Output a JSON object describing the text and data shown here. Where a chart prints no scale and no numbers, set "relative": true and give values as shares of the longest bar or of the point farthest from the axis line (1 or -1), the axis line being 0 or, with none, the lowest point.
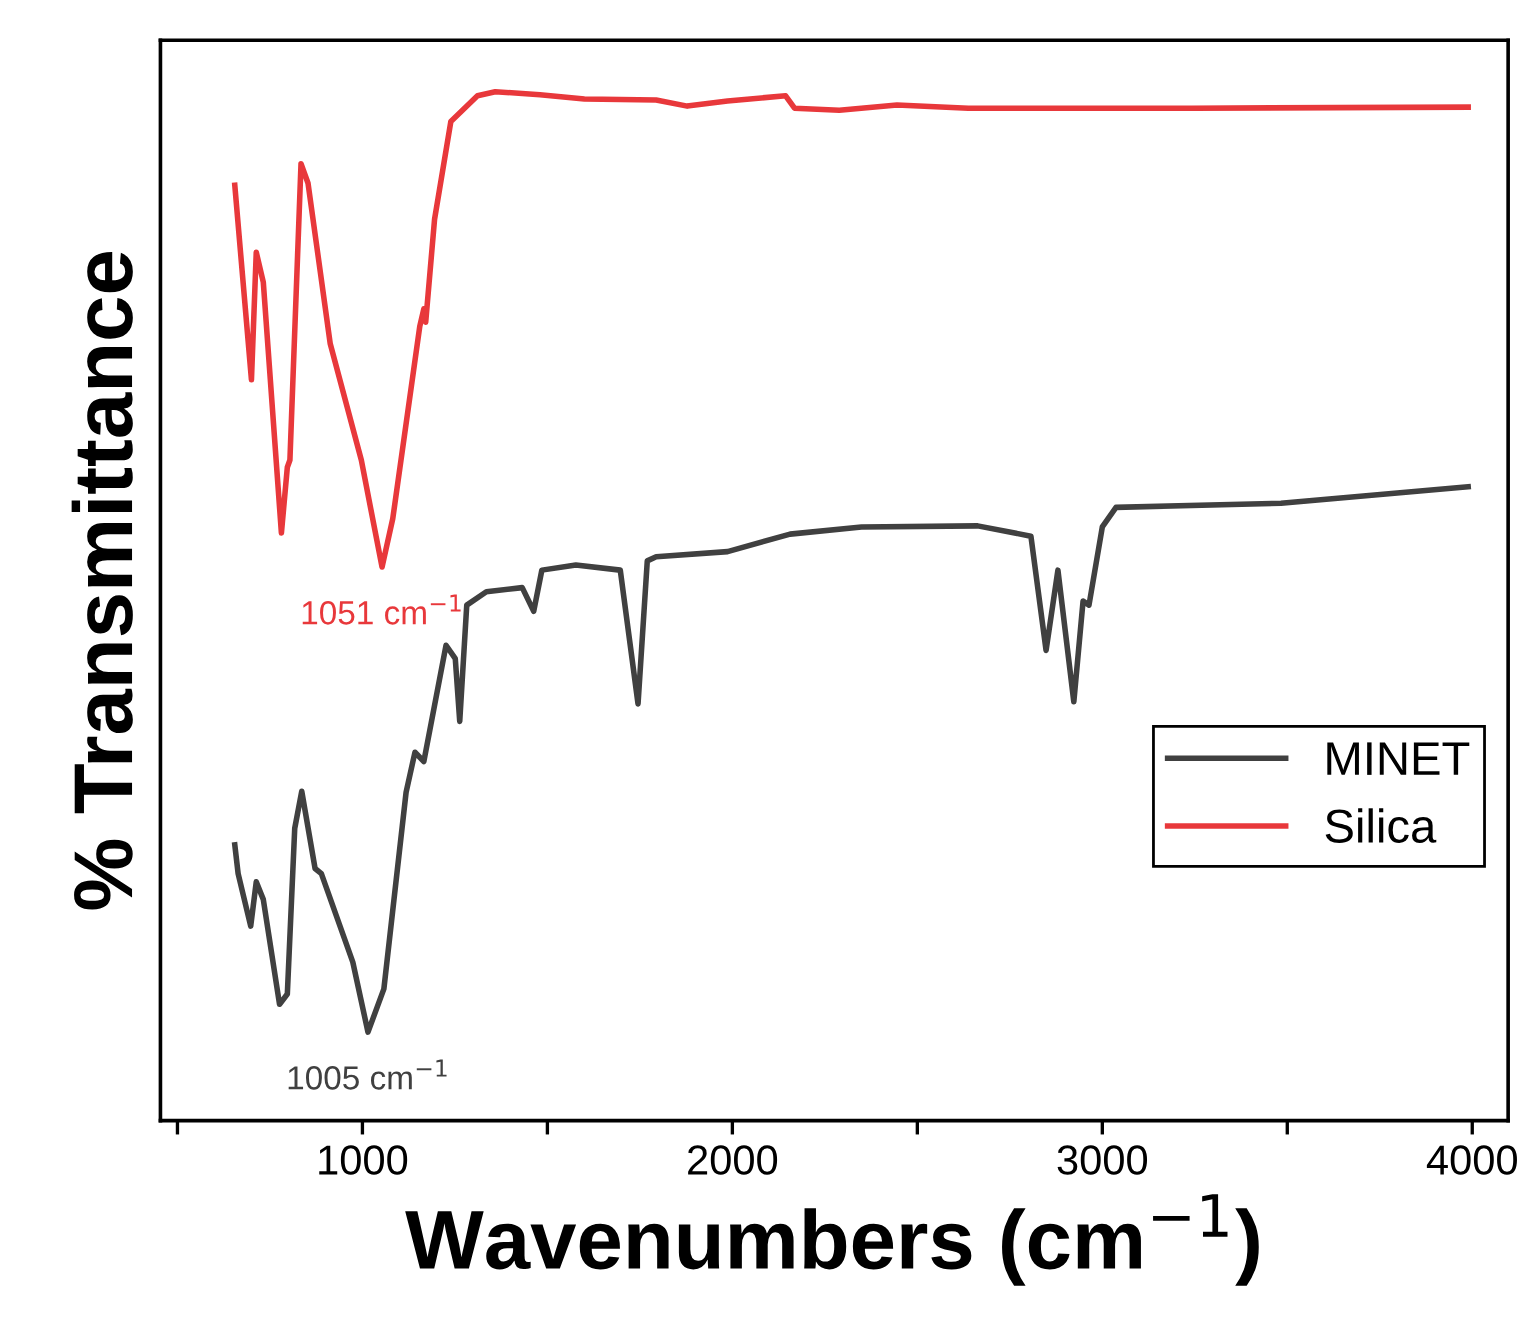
{
  "chart_data": {
    "type": "line",
    "relative": true,
    "xlabel": "Wavenumbers (cm$^{−1}$)",
    "ylabel": "% Transmittance",
    "xlim": [
      454,
      4097
    ],
    "xticks": [
      {
        "value": 500,
        "label": null
      },
      1000,
      {
        "value": 1500,
        "label": null
      },
      2000,
      {
        "value": 2500,
        "label": null
      },
      3000,
      {
        "value": 3500,
        "label": null
      },
      4000
    ],
    "legend": "right",
    "grid": false,
    "marker": "none",
    "line_style": "solid",
    "tick_labels": "x",
    "annotations": [
      {
        "text": "1051 cm$^{−1}$",
        "x": 1053,
        "y": 0.538
      },
      {
        "text": "1005 cm$^{−1}$",
        "x": 1015,
        "y": 0.086
      }
    ],
    "series": [
      {
        "name": "MINET",
        "color": "#404040",
        "x": [
          655,
          664,
          698,
          713,
          732,
          776,
          797,
          817,
          836,
          872,
          889,
          974,
          1015,
          1058,
          1118,
          1142,
          1166,
          1226,
          1251,
          1263,
          1282,
          1335,
          1432,
          1463,
          1485,
          1577,
          1697,
          1745,
          1770,
          1794,
          1987,
          2156,
          2349,
          2663,
          2807,
          2848,
          2880,
          2923,
          2948,
          2964,
          3000,
          3037,
          3483,
          3989
        ],
        "values": [
          0.268,
          0.24,
          0.189,
          0.232,
          0.215,
          0.113,
          0.123,
          0.284,
          0.32,
          0.245,
          0.24,
          0.154,
          0.086,
          0.128,
          0.319,
          0.358,
          0.349,
          0.462,
          0.449,
          0.388,
          0.501,
          0.514,
          0.518,
          0.495,
          0.535,
          0.54,
          0.535,
          0.405,
          0.544,
          0.548,
          0.553,
          0.57,
          0.577,
          0.578,
          0.568,
          0.457,
          0.535,
          0.407,
          0.505,
          0.501,
          0.577,
          0.596,
          0.6,
          0.616
        ]
      },
      {
        "name": "Silica",
        "color": "#e8383b",
        "x": [
          655,
          700,
          713,
          732,
          781,
          797,
          804,
          834,
          853,
          913,
          997,
          1053,
          1082,
          1155,
          1166,
          1171,
          1195,
          1239,
          1311,
          1359,
          1480,
          1600,
          1794,
          1878,
          1987,
          2144,
          2168,
          2289,
          2445,
          2638,
          3242,
          3989
        ],
        "values": [
          0.909,
          0.72,
          0.844,
          0.815,
          0.571,
          0.635,
          0.642,
          0.93,
          0.911,
          0.755,
          0.642,
          0.538,
          0.585,
          0.772,
          0.789,
          0.776,
          0.876,
          0.971,
          0.996,
          1.0,
          0.997,
          0.993,
          0.992,
          0.986,
          0.991,
          0.996,
          0.984,
          0.982,
          0.987,
          0.984,
          0.984,
          0.985
        ]
      }
    ]
  }
}
